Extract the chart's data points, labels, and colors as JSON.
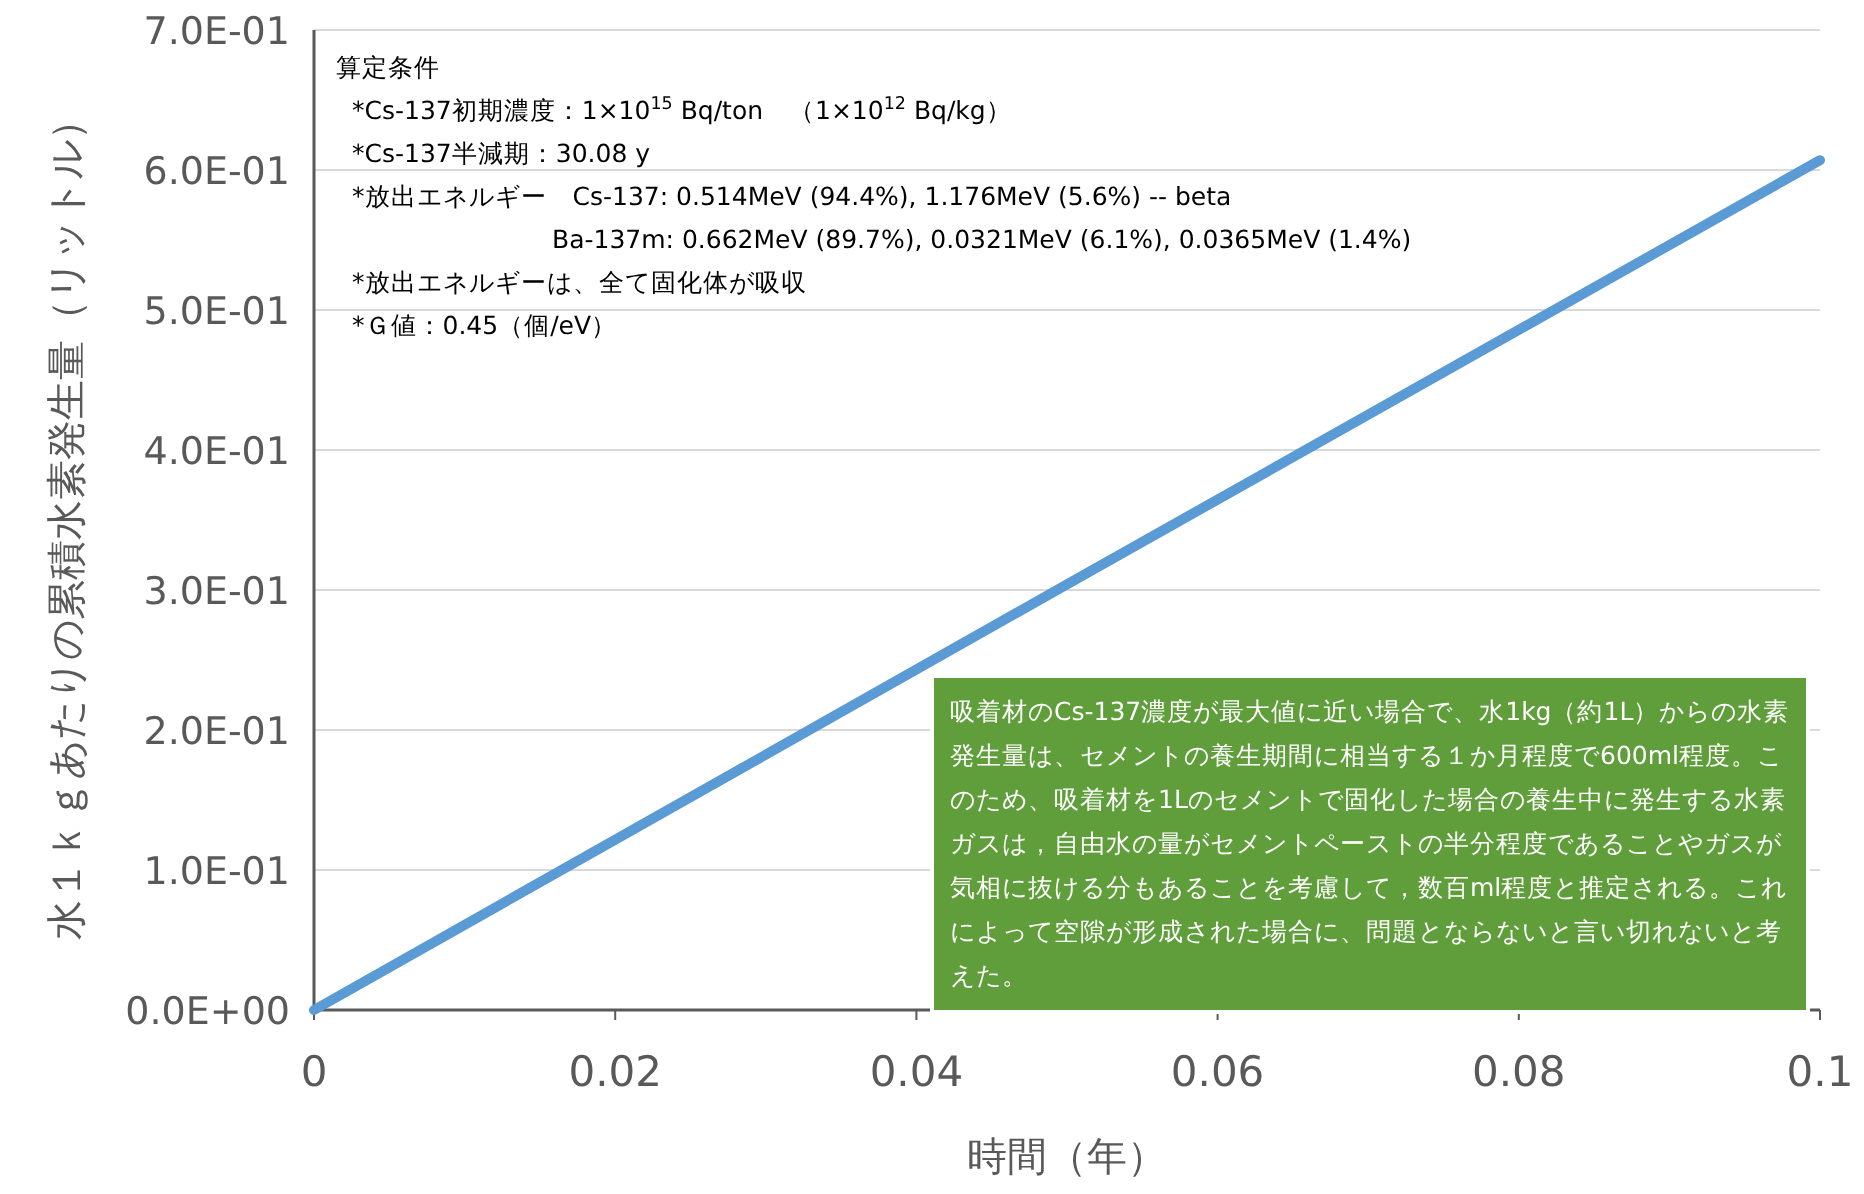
{
  "chart_data": {
    "type": "line",
    "xlabel": "時間（年）",
    "ylabel": "水１ｋｇあたりの累積水素発生量（リットル）",
    "x": [
      0,
      0.05,
      0.1
    ],
    "series": [
      {
        "color": "#5b9bd5",
        "values": [
          0,
          0.304,
          0.607
        ]
      }
    ],
    "xlim": [
      0,
      0.1
    ],
    "ylim": [
      0,
      0.7
    ],
    "xticks": [
      0,
      0.02,
      0.04,
      0.06,
      0.08,
      0.1
    ],
    "yticks": [
      {
        "value": 0,
        "label": "0.0E+00"
      },
      {
        "value": 0.1,
        "label": "1.0E-01"
      },
      {
        "value": 0.2,
        "label": "2.0E-01"
      },
      {
        "value": 0.3,
        "label": "3.0E-01"
      },
      {
        "value": 0.4,
        "label": "4.0E-01"
      },
      {
        "value": 0.5,
        "label": "5.0E-01"
      },
      {
        "value": 0.6,
        "label": "6.0E-01"
      },
      {
        "value": 0.7,
        "label": "7.0E-01"
      }
    ],
    "grid": "y",
    "marker": "none",
    "line_style": "solid",
    "annotations": [
      "算定条件",
      "*Cs-137初期濃度：1×10$^{15}$ Bq/ton　（1×10$^{12}$ Bq/kg）",
      "*Cs-137半減期：30.08 y",
      "*放出エネルギー　Cs-137: 0.514MeV (94.4%), 1.176MeV (5.6%) -- beta",
      "Ba-137m: 0.662MeV (89.7%), 0.0321MeV (6.1%), 0.0365MeV (1.4%)",
      "*放出エネルギーは、全て固化体が吸収",
      "*Ｇ値：0.45（個/eV）",
      "吸着材のCs-137濃度が最大値に近い場合で、水1kg（約1L）からの水素発生量は、セメントの養生期間に相当する１か月程度で600ml程度。このため、吸着材を1Lのセメントで固化した場合の養生中に発生する水素ガスは，自由水の量がセメントペーストの半分程度であることやガスが気相に抜ける分もあることを考慮して，数百ml程度と推定される。これによって空隙が形成された場合に、問題とならないと言い切れないと考えた。"
    ]
  }
}
